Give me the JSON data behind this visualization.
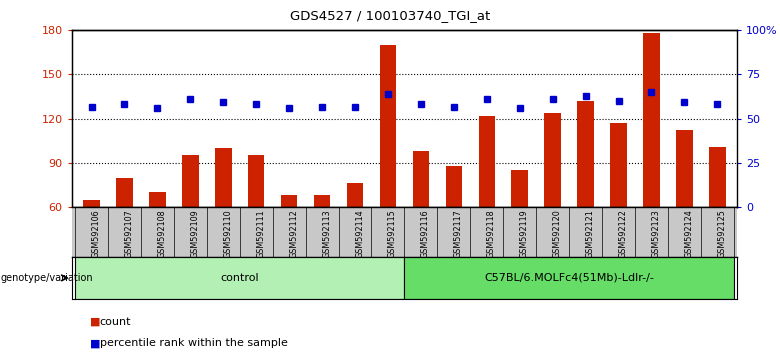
{
  "title": "GDS4527 / 100103740_TGI_at",
  "samples": [
    "GSM592106",
    "GSM592107",
    "GSM592108",
    "GSM592109",
    "GSM592110",
    "GSM592111",
    "GSM592112",
    "GSM592113",
    "GSM592114",
    "GSM592115",
    "GSM592116",
    "GSM592117",
    "GSM592118",
    "GSM592119",
    "GSM592120",
    "GSM592121",
    "GSM592122",
    "GSM592123",
    "GSM592124",
    "GSM592125"
  ],
  "counts": [
    65,
    80,
    70,
    95,
    100,
    95,
    68,
    68,
    76,
    170,
    98,
    88,
    122,
    85,
    124,
    132,
    117,
    178,
    112,
    101
  ],
  "percentile_ranks": [
    128,
    130,
    127,
    133,
    131,
    130,
    127,
    128,
    128,
    137,
    130,
    128,
    133,
    127,
    133,
    135,
    132,
    138,
    131,
    130
  ],
  "groups": {
    "control": [
      0,
      9
    ],
    "treatment": [
      10,
      19
    ]
  },
  "group_labels": [
    "control",
    "C57BL/6.MOLFc4(51Mb)-Ldlr-/-"
  ],
  "group_colors": [
    "#b3f0b3",
    "#66dd66"
  ],
  "ylim_left": [
    60,
    180
  ],
  "ylim_right": [
    0,
    100
  ],
  "yticks_left": [
    60,
    90,
    120,
    150,
    180
  ],
  "yticks_right": [
    0,
    25,
    50,
    75,
    100
  ],
  "yticklabels_right": [
    "0",
    "25",
    "50",
    "75",
    "100%"
  ],
  "bar_color": "#cc2200",
  "dot_color": "#0000cc",
  "bar_width": 0.5,
  "background_color": "#ffffff",
  "tick_label_area_color": "#c8c8c8",
  "legend_count_label": "count",
  "legend_pct_label": "percentile rank within the sample"
}
